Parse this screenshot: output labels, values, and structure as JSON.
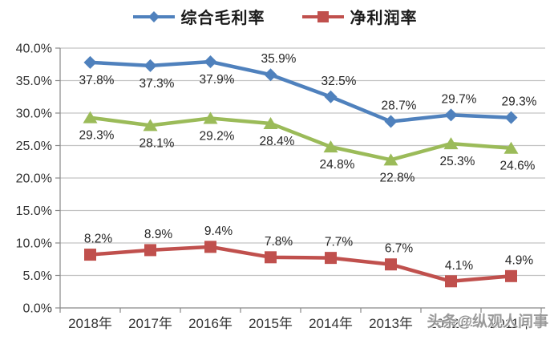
{
  "watermark": {
    "text": "头条@纵观人间事"
  },
  "chart_data": {
    "type": "line",
    "title": "",
    "categories": [
      "2018年",
      "2017年",
      "2016年",
      "2015年",
      "2014年",
      "2013年",
      "2012年",
      "2011年"
    ],
    "series": [
      {
        "name": "综合毛利率",
        "color": "#4F81BD",
        "marker": "diamond",
        "in_legend": true,
        "values": [
          37.8,
          37.3,
          37.9,
          35.9,
          32.5,
          28.7,
          29.7,
          29.3
        ],
        "label_positions": [
          "below",
          "below",
          "below",
          "above",
          "above",
          "above",
          "above",
          "above"
        ]
      },
      {
        "name": "净利润率",
        "color": "#C0504D",
        "marker": "square",
        "in_legend": true,
        "values": [
          8.2,
          8.9,
          9.4,
          7.8,
          7.7,
          6.7,
          4.1,
          4.9
        ],
        "label_positions": [
          "above",
          "above",
          "above",
          "above",
          "above",
          "above",
          "above",
          "above"
        ]
      },
      {
        "name": "",
        "color": "#9BBB59",
        "marker": "triangle",
        "in_legend": false,
        "values": [
          29.3,
          28.1,
          29.2,
          28.4,
          24.8,
          22.8,
          25.3,
          24.6
        ],
        "label_positions": [
          "below",
          "below",
          "below",
          "below",
          "below",
          "below",
          "below",
          "below"
        ]
      }
    ],
    "label_format": "{v}%",
    "y_axis": {
      "min": 0,
      "max": 40,
      "step": 5,
      "tick_labels": [
        "40.0%",
        "35.0%",
        "30.0%",
        "25.0%",
        "20.0%",
        "15.0%",
        "10.0%",
        "5.0%",
        "0.0%"
      ]
    },
    "x_axis_label": "",
    "y_axis_label": "",
    "legend_position": "top",
    "grid": true,
    "colors": {
      "gridline": "#C3C3C3",
      "axis": "#898989",
      "tick_text": "#333333",
      "data_label_text": "#262626"
    }
  }
}
